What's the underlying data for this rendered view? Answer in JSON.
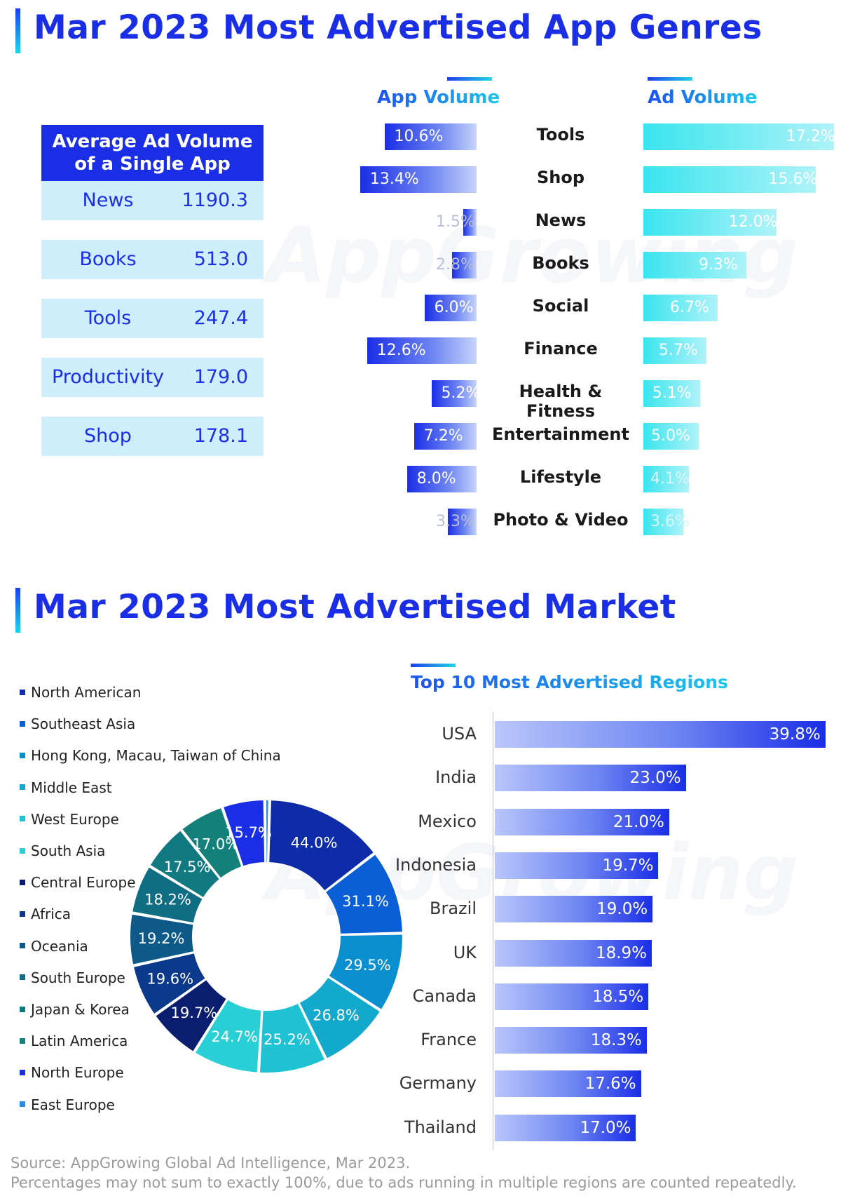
{
  "section1": {
    "title": "Mar 2023 Most Advertised App Genres"
  },
  "section2": {
    "title": "Mar 2023 Most Advertised Market"
  },
  "watermark": "AppGrowing",
  "colors": {
    "title_blue": "#1a2ee6",
    "app_bar": "#1a2ee6",
    "ad_bar": "#3ae4ee",
    "table_bg": "#cfeefb"
  },
  "avg_table": {
    "title_line1": "Average Ad Volume",
    "title_line2": "of a Single App",
    "rows": [
      {
        "name": "News",
        "value": "1190.3"
      },
      {
        "name": "Books",
        "value": "513.0"
      },
      {
        "name": "Tools",
        "value": "247.4"
      },
      {
        "name": "Productivity",
        "value": "179.0"
      },
      {
        "name": "Shop",
        "value": "178.1"
      }
    ]
  },
  "chart_data": [
    {
      "type": "bar",
      "orientation": "horizontal-butterfly",
      "categories": [
        "Tools",
        "Shop",
        "News",
        "Books",
        "Social",
        "Finance",
        "Health & Fitness",
        "Entertainment",
        "Lifestyle",
        "Photo & Video"
      ],
      "series": [
        {
          "name": "App Volume",
          "values": [
            10.6,
            13.4,
            1.5,
            2.8,
            6.0,
            12.6,
            5.2,
            7.2,
            8.0,
            3.3
          ],
          "labels": [
            "10.6%",
            "13.4%",
            "1.5%",
            "2.8%",
            "6.0%",
            "12.6%",
            "5.2%",
            "7.2%",
            "8.0%",
            "3.3%"
          ]
        },
        {
          "name": "Ad Volume",
          "values": [
            17.2,
            15.6,
            12.0,
            9.3,
            6.7,
            5.7,
            5.1,
            5.0,
            4.1,
            3.6
          ],
          "labels": [
            "17.2%",
            "15.6%",
            "12.0%",
            "9.3%",
            "6.7%",
            "5.7%",
            "5.1%",
            "5.0%",
            "4.1%",
            "3.6%"
          ]
        }
      ]
    },
    {
      "type": "pie",
      "style": "donut",
      "categories": [
        "North American",
        "Southeast Asia",
        "Hong Kong, Macau, Taiwan of China",
        "Middle East",
        "West Europe",
        "South Asia",
        "Central Europe",
        "Africa",
        "Oceania",
        "South Europe",
        "Japan & Korea",
        "Latin America",
        "North Europe",
        "East Europe"
      ],
      "values": [
        44.0,
        31.1,
        29.5,
        26.8,
        25.2,
        24.7,
        19.7,
        19.6,
        19.2,
        18.2,
        17.5,
        17.0,
        15.7,
        1.8
      ],
      "labels": [
        "44.0%",
        "31.1%",
        "29.5%",
        "26.8%",
        "25.2%",
        "24.7%",
        "19.7%",
        "19.6%",
        "19.2%",
        "18.2%",
        "17.5%",
        "17.0%",
        "15.7%",
        ""
      ],
      "colors": [
        "#0f2ca8",
        "#0a5fd6",
        "#0a8fd0",
        "#12a9cc",
        "#1fc2d2",
        "#28cfd4",
        "#0a1d6e",
        "#0b3a8c",
        "#0d5a88",
        "#0f6e84",
        "#117a80",
        "#13807a",
        "#1a2ee6",
        "#2a8ae8"
      ],
      "legend_position": "left"
    },
    {
      "type": "bar",
      "orientation": "horizontal",
      "title": "Top 10 Most Advertised Regions",
      "categories": [
        "USA",
        "India",
        "Mexico",
        "Indonesia",
        "Brazil",
        "UK",
        "Canada",
        "France",
        "Germany",
        "Thailand"
      ],
      "values": [
        39.8,
        23.0,
        21.0,
        19.7,
        19.0,
        18.9,
        18.5,
        18.3,
        17.6,
        17.0
      ],
      "labels": [
        "39.8%",
        "23.0%",
        "21.0%",
        "19.7%",
        "19.0%",
        "18.9%",
        "18.5%",
        "18.3%",
        "17.6%",
        "17.0%"
      ]
    }
  ],
  "source": {
    "line1": "Source: AppGrowing Global Ad Intelligence, Mar 2023.",
    "line2": "Percentages  may not sum to exactly 100%, due to ads running  in multiple  regions are counted repeatedly."
  }
}
